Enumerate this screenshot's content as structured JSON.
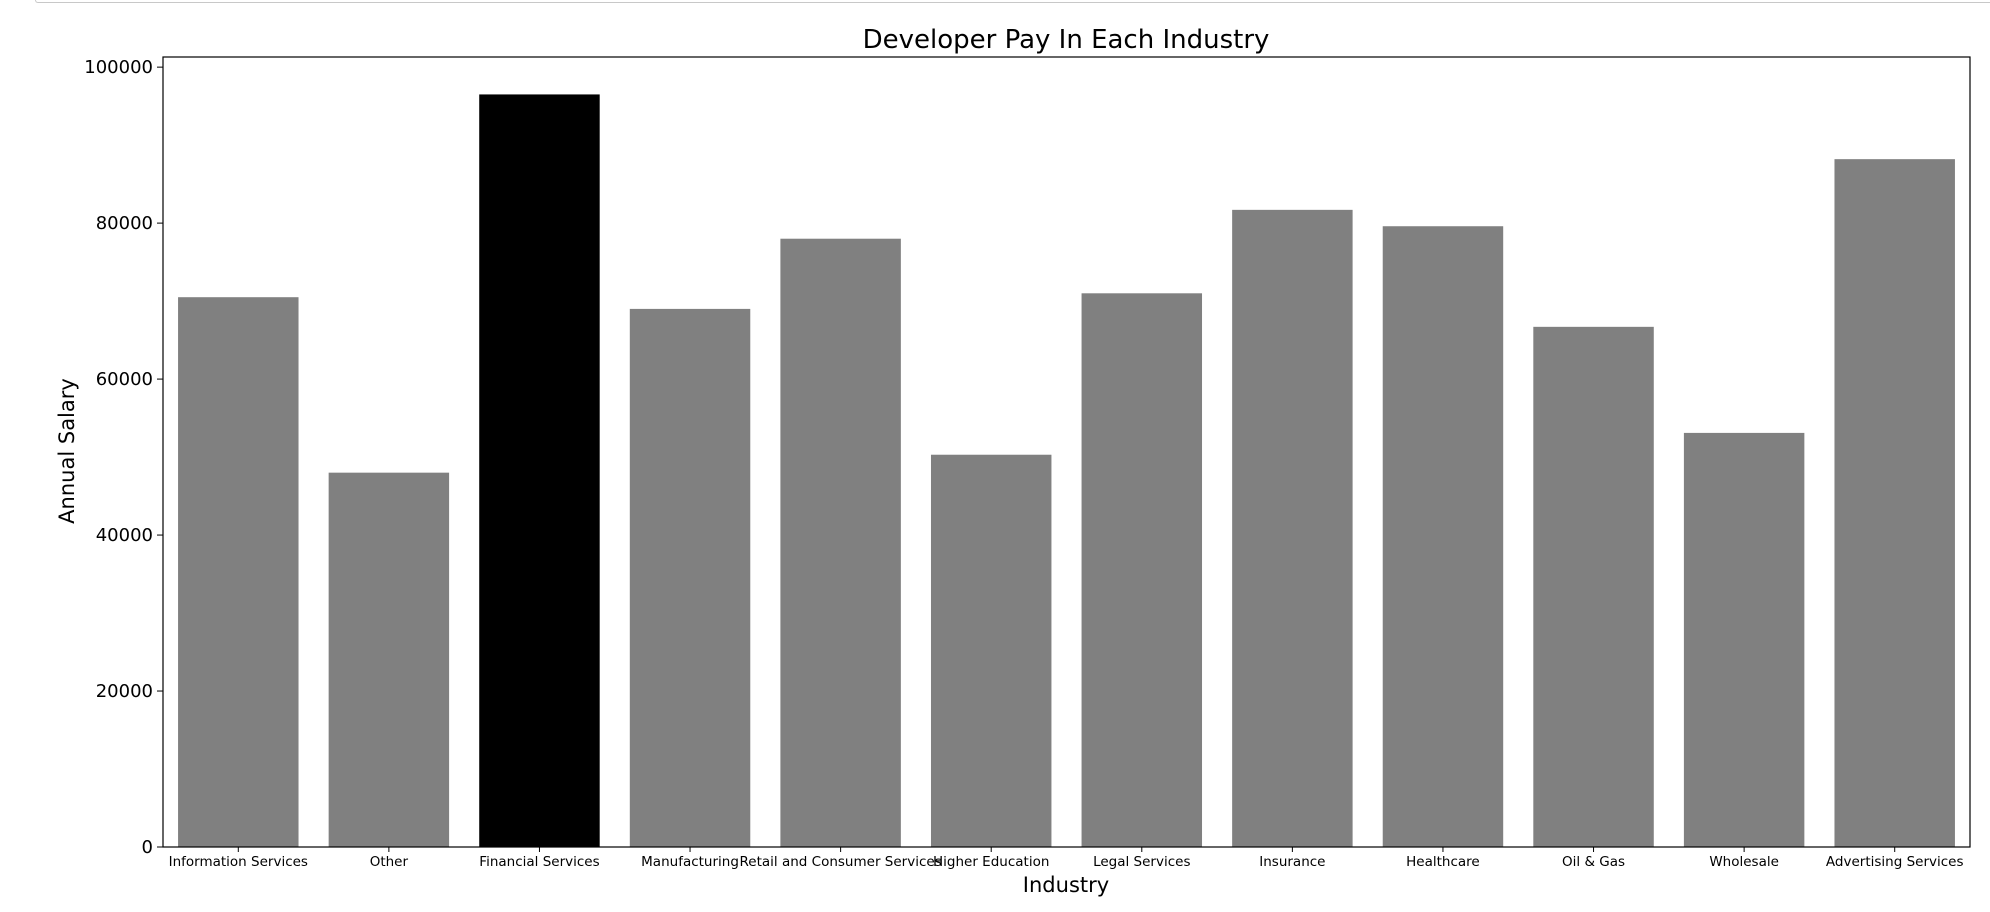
{
  "chart_data": {
    "type": "bar",
    "title": "Developer Pay In Each Industry",
    "xlabel": "Industry",
    "ylabel": "Annual Salary",
    "categories": [
      "Information Services",
      "Other",
      "Financial Services",
      "Manufacturing",
      "Retail and Consumer Services",
      "Higher Education",
      "Legal Services",
      "Insurance",
      "Healthcare",
      "Oil & Gas",
      "Wholesale",
      "Advertising Services"
    ],
    "values": [
      70500,
      48000,
      96500,
      69000,
      78000,
      50300,
      71000,
      81700,
      79600,
      66700,
      53100,
      88200
    ],
    "bar_colors": [
      "#808080",
      "#808080",
      "#000000",
      "#808080",
      "#808080",
      "#808080",
      "#808080",
      "#808080",
      "#808080",
      "#808080",
      "#808080",
      "#808080"
    ],
    "ylim": [
      0,
      101300
    ],
    "yticks": [
      0,
      20000,
      40000,
      60000,
      80000,
      100000
    ],
    "ytick_labels": [
      "0",
      "20000",
      "40000",
      "60000",
      "80000",
      "100000"
    ],
    "grid": false,
    "legend": "none"
  }
}
